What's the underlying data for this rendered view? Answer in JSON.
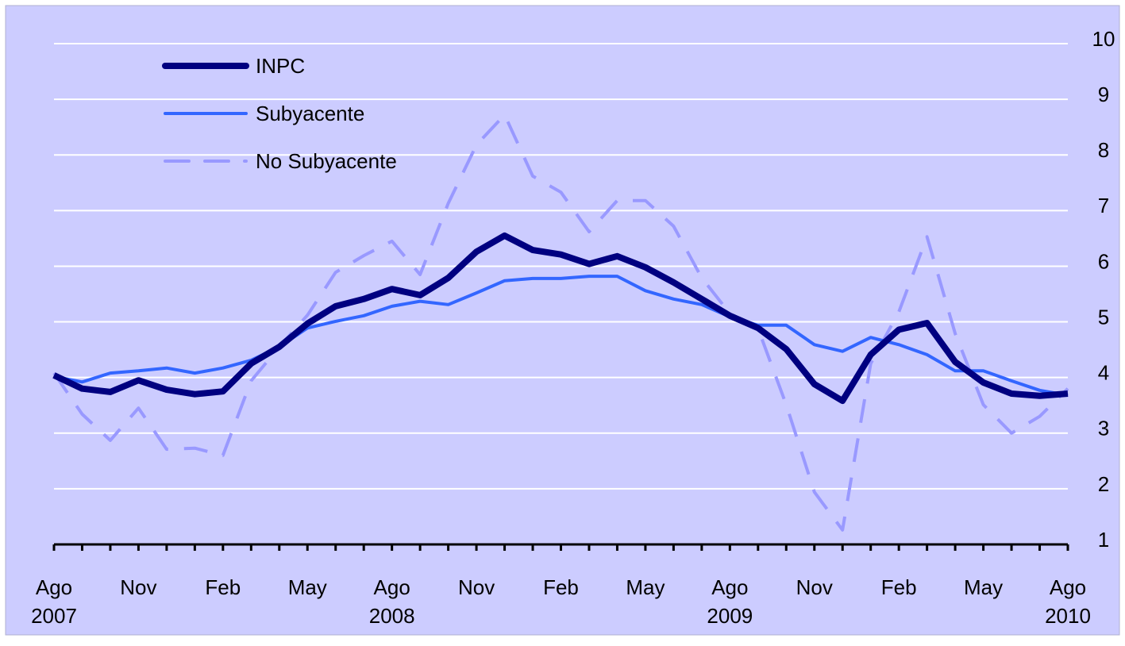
{
  "chart_data": {
    "type": "line",
    "categories": [
      "Ago\n2007",
      null,
      null,
      "Nov",
      null,
      null,
      "Feb",
      null,
      null,
      "May",
      null,
      null,
      "Ago\n2008",
      null,
      null,
      "Nov",
      null,
      null,
      "Feb",
      null,
      null,
      "May",
      null,
      null,
      "Ago\n2009",
      null,
      null,
      "Nov",
      null,
      null,
      "Feb",
      null,
      null,
      "May",
      null,
      null,
      "Ago\n2010"
    ],
    "series": [
      {
        "name": "INPC",
        "color": "#000080",
        "values": [
          4.04,
          3.8,
          3.74,
          3.95,
          3.78,
          3.7,
          3.75,
          4.25,
          4.55,
          4.97,
          5.28,
          5.41,
          5.59,
          5.48,
          5.79,
          6.26,
          6.55,
          6.29,
          6.21,
          6.04,
          6.18,
          5.98,
          5.71,
          5.41,
          5.11,
          4.89,
          4.51,
          3.88,
          3.58,
          4.41,
          4.86,
          4.98,
          4.28,
          3.91,
          3.71,
          3.67,
          3.71
        ]
      },
      {
        "name": "Subyacente",
        "color": "#3366ff",
        "values": [
          4.02,
          3.92,
          4.08,
          4.12,
          4.17,
          4.08,
          4.17,
          4.31,
          4.55,
          4.89,
          5.01,
          5.11,
          5.28,
          5.37,
          5.31,
          5.52,
          5.74,
          5.78,
          5.78,
          5.82,
          5.82,
          5.56,
          5.41,
          5.31,
          5.09,
          4.94,
          4.94,
          4.59,
          4.47,
          4.72,
          4.59,
          4.41,
          4.12,
          4.12,
          3.94,
          3.77,
          3.68
        ]
      },
      {
        "name": "No Subyacente",
        "color": "#9999ff",
        "dashed": true,
        "values": [
          4.08,
          3.34,
          2.87,
          3.45,
          2.71,
          2.73,
          2.6,
          3.94,
          4.55,
          5.12,
          5.89,
          6.19,
          6.45,
          5.85,
          7.13,
          8.18,
          8.72,
          7.62,
          7.33,
          6.62,
          7.18,
          7.18,
          6.72,
          5.79,
          5.15,
          4.88,
          3.51,
          1.94,
          1.26,
          4.25,
          5.18,
          6.53,
          4.79,
          3.51,
          3.0,
          3.3,
          3.8
        ]
      }
    ],
    "ylim": [
      1,
      10
    ],
    "yticks": [
      1,
      2,
      3,
      4,
      5,
      6,
      7,
      8,
      9,
      10
    ],
    "y_axis_side": "right",
    "grid": true,
    "legend": "upper left",
    "background": "#ccccff"
  }
}
